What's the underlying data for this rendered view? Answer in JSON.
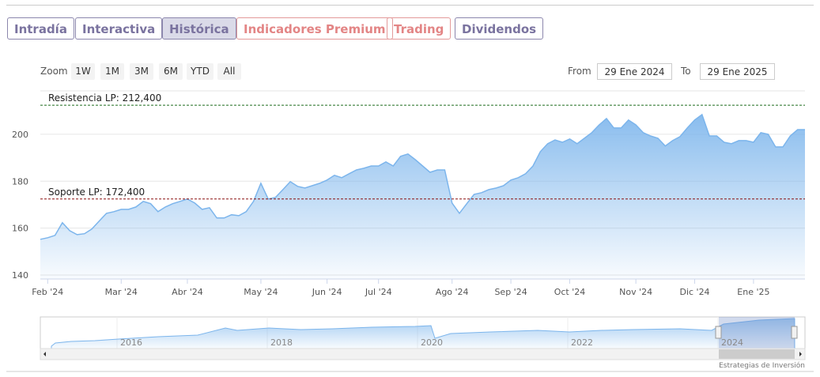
{
  "tabs": [
    "Intradía",
    "Interactiva",
    "Histórica",
    "Indicadores Premium",
    "Trading",
    "Dividendos"
  ],
  "zoom": {
    "label": "Zoom",
    "buttons": [
      "1W",
      "1M",
      "3M",
      "6M",
      "YTD",
      "All"
    ]
  },
  "range": {
    "from_label": "From",
    "from": "29 Ene 2024",
    "to_label": "To",
    "to": "29 Ene 2025"
  },
  "chart_data": {
    "type": "area",
    "color": "#7cb5ec",
    "categories": [
      null,
      "Feb '24",
      null,
      null,
      null,
      null,
      null,
      null,
      null,
      null,
      null,
      "Mar '24",
      null,
      null,
      null,
      null,
      null,
      null,
      null,
      null,
      "Abr '24",
      null,
      null,
      null,
      null,
      null,
      null,
      null,
      null,
      null,
      "May '24",
      null,
      null,
      null,
      null,
      null,
      null,
      null,
      null,
      "Jun '24",
      null,
      null,
      null,
      null,
      null,
      null,
      "Jul '24",
      null,
      null,
      null,
      null,
      null,
      null,
      null,
      null,
      null,
      "Ago '24",
      null,
      null,
      null,
      null,
      null,
      null,
      null,
      "Sep '24",
      null,
      null,
      null,
      null,
      null,
      null,
      null,
      "Oct '24",
      null,
      null,
      null,
      null,
      null,
      null,
      null,
      null,
      "Nov '24",
      null,
      null,
      null,
      null,
      null,
      null,
      null,
      "Dic '24",
      null,
      null,
      null,
      null,
      null,
      null,
      null,
      "Ene '25",
      null,
      null,
      null,
      null,
      null,
      null,
      null
    ],
    "values": [
      155.2,
      155.9,
      156.9,
      162.3,
      158.9,
      157.2,
      157.6,
      159.6,
      163.0,
      166.3,
      167.0,
      168.0,
      168.0,
      169.0,
      171.4,
      170.4,
      167.0,
      169.0,
      170.4,
      171.4,
      172.4,
      170.7,
      168.0,
      168.7,
      164.3,
      164.3,
      165.7,
      165.3,
      167.0,
      171.4,
      179.1,
      172.4,
      173.1,
      176.4,
      179.8,
      177.8,
      177.1,
      178.1,
      179.1,
      180.5,
      182.5,
      181.5,
      183.2,
      184.8,
      185.5,
      186.5,
      186.5,
      188.2,
      186.5,
      190.6,
      191.6,
      189.2,
      186.5,
      183.8,
      184.8,
      184.8,
      170.7,
      166.3,
      170.4,
      174.4,
      175.1,
      176.4,
      177.1,
      178.1,
      180.5,
      181.5,
      183.2,
      186.5,
      192.6,
      196.0,
      197.6,
      196.6,
      198.0,
      196.0,
      198.3,
      200.7,
      204.0,
      206.7,
      202.7,
      202.7,
      206.1,
      204.0,
      200.7,
      199.3,
      198.3,
      195.0,
      197.3,
      199.0,
      202.7,
      206.1,
      208.4,
      199.3,
      199.3,
      196.6,
      196.0,
      197.3,
      197.3,
      196.6,
      200.7,
      200.0,
      194.6,
      194.6,
      199.3,
      202.0,
      202.0
    ],
    "ylim": [
      138.3,
      218.5
    ],
    "yticks": [
      140,
      160,
      180,
      200
    ],
    "grid": true,
    "plot_lines": [
      {
        "label": "Resistencia LP: 212,400",
        "value": 212.4,
        "color": "#1b6b1b"
      },
      {
        "label": "Soporte LP: 172,400",
        "value": 172.4,
        "color": "#8b1010"
      }
    ]
  },
  "navigator": {
    "labels": [
      "2016",
      "2018",
      "2020",
      "2022",
      "2024"
    ]
  },
  "credits": "Estrategias de Inversión"
}
